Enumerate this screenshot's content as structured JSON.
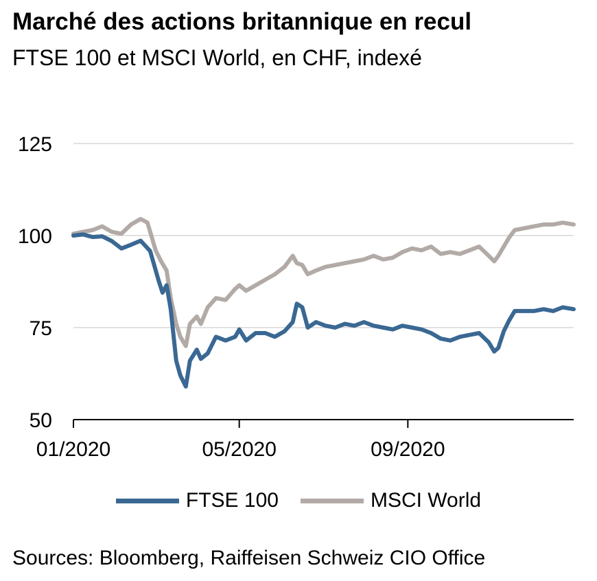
{
  "title": "Marché des actions britannique en recul",
  "subtitle": "FTSE 100 et MSCI World, en CHF, indexé",
  "source": "Sources: Bloomberg, Raiffeisen Schweiz CIO Office",
  "colors": {
    "ftse": "#3a6893",
    "msci": "#b2aaa6",
    "grid": "#cfcfcf",
    "axis": "#000000"
  },
  "chart_data": {
    "type": "line",
    "title": "Marché des actions britannique en recul",
    "subtitle": "FTSE 100 et MSCI World, en CHF, indexé",
    "xlabel": "",
    "ylabel": "",
    "x_range": [
      "2020-01-01",
      "2020-12-31"
    ],
    "ylim": [
      50,
      125
    ],
    "y_ticks": [
      50,
      75,
      100,
      125
    ],
    "y_tick_labels": [
      "50",
      "75",
      "100",
      "125"
    ],
    "x_ticks": [
      "2020-01-01",
      "2020-05-01",
      "2020-09-01"
    ],
    "x_tick_labels": [
      "01/2020",
      "05/2020",
      "09/2020"
    ],
    "grid": "horizontal",
    "legend_position": "bottom-center",
    "series": [
      {
        "name": "FTSE 100",
        "color": "#3a6893",
        "points": [
          [
            "2020-01-01",
            100
          ],
          [
            "2020-01-08",
            100.3
          ],
          [
            "2020-01-15",
            99.6
          ],
          [
            "2020-01-22",
            99.8
          ],
          [
            "2020-01-29",
            98.5
          ],
          [
            "2020-02-05",
            96.5
          ],
          [
            "2020-02-12",
            97.5
          ],
          [
            "2020-02-19",
            98.6
          ],
          [
            "2020-02-26",
            95.8
          ],
          [
            "2020-03-03",
            88
          ],
          [
            "2020-03-06",
            84.5
          ],
          [
            "2020-03-09",
            86.5
          ],
          [
            "2020-03-12",
            80
          ],
          [
            "2020-03-16",
            66
          ],
          [
            "2020-03-19",
            62
          ],
          [
            "2020-03-23",
            59
          ],
          [
            "2020-03-26",
            66
          ],
          [
            "2020-03-31",
            69
          ],
          [
            "2020-04-03",
            66.5
          ],
          [
            "2020-04-08",
            68
          ],
          [
            "2020-04-14",
            72.5
          ],
          [
            "2020-04-21",
            71.5
          ],
          [
            "2020-04-28",
            72.5
          ],
          [
            "2020-05-01",
            74.5
          ],
          [
            "2020-05-06",
            71.5
          ],
          [
            "2020-05-13",
            73.5
          ],
          [
            "2020-05-20",
            73.5
          ],
          [
            "2020-05-27",
            72.5
          ],
          [
            "2020-06-03",
            74
          ],
          [
            "2020-06-09",
            76.5
          ],
          [
            "2020-06-12",
            81.5
          ],
          [
            "2020-06-16",
            80.5
          ],
          [
            "2020-06-20",
            75
          ],
          [
            "2020-06-26",
            76.5
          ],
          [
            "2020-07-03",
            75.5
          ],
          [
            "2020-07-10",
            75
          ],
          [
            "2020-07-17",
            76
          ],
          [
            "2020-07-24",
            75.5
          ],
          [
            "2020-07-31",
            76.5
          ],
          [
            "2020-08-07",
            75.5
          ],
          [
            "2020-08-14",
            75
          ],
          [
            "2020-08-21",
            74.5
          ],
          [
            "2020-08-28",
            75.5
          ],
          [
            "2020-09-04",
            75
          ],
          [
            "2020-09-11",
            74.5
          ],
          [
            "2020-09-18",
            73.5
          ],
          [
            "2020-09-25",
            72
          ],
          [
            "2020-10-02",
            71.5
          ],
          [
            "2020-10-09",
            72.5
          ],
          [
            "2020-10-16",
            73
          ],
          [
            "2020-10-23",
            73.5
          ],
          [
            "2020-10-30",
            71
          ],
          [
            "2020-11-03",
            68.5
          ],
          [
            "2020-11-06",
            69.5
          ],
          [
            "2020-11-10",
            74
          ],
          [
            "2020-11-14",
            77
          ],
          [
            "2020-11-18",
            79.5
          ],
          [
            "2020-11-25",
            79.5
          ],
          [
            "2020-12-02",
            79.5
          ],
          [
            "2020-12-09",
            80
          ],
          [
            "2020-12-16",
            79.5
          ],
          [
            "2020-12-23",
            80.5
          ],
          [
            "2020-12-31",
            80
          ]
        ]
      },
      {
        "name": "MSCI World",
        "color": "#b2aaa6",
        "points": [
          [
            "2020-01-01",
            100.5
          ],
          [
            "2020-01-08",
            101
          ],
          [
            "2020-01-15",
            101.5
          ],
          [
            "2020-01-22",
            102.5
          ],
          [
            "2020-01-29",
            101
          ],
          [
            "2020-02-05",
            100.5
          ],
          [
            "2020-02-12",
            103
          ],
          [
            "2020-02-19",
            104.5
          ],
          [
            "2020-02-24",
            103.5
          ],
          [
            "2020-03-01",
            96
          ],
          [
            "2020-03-05",
            93
          ],
          [
            "2020-03-09",
            90.5
          ],
          [
            "2020-03-12",
            83
          ],
          [
            "2020-03-16",
            76
          ],
          [
            "2020-03-19",
            72.5
          ],
          [
            "2020-03-23",
            70
          ],
          [
            "2020-03-26",
            76
          ],
          [
            "2020-03-31",
            78
          ],
          [
            "2020-04-03",
            76
          ],
          [
            "2020-04-08",
            80.5
          ],
          [
            "2020-04-14",
            83
          ],
          [
            "2020-04-21",
            82.5
          ],
          [
            "2020-04-28",
            85.5
          ],
          [
            "2020-05-01",
            86.5
          ],
          [
            "2020-05-06",
            85
          ],
          [
            "2020-05-13",
            86.5
          ],
          [
            "2020-05-20",
            88
          ],
          [
            "2020-05-27",
            89.5
          ],
          [
            "2020-06-03",
            91.5
          ],
          [
            "2020-06-09",
            94.5
          ],
          [
            "2020-06-12",
            92.5
          ],
          [
            "2020-06-16",
            92
          ],
          [
            "2020-06-20",
            89.5
          ],
          [
            "2020-06-26",
            90.5
          ],
          [
            "2020-07-03",
            91.5
          ],
          [
            "2020-07-10",
            92
          ],
          [
            "2020-07-17",
            92.5
          ],
          [
            "2020-07-24",
            93
          ],
          [
            "2020-07-31",
            93.5
          ],
          [
            "2020-08-07",
            94.5
          ],
          [
            "2020-08-14",
            93.5
          ],
          [
            "2020-08-21",
            94
          ],
          [
            "2020-08-28",
            95.5
          ],
          [
            "2020-09-04",
            96.5
          ],
          [
            "2020-09-11",
            96
          ],
          [
            "2020-09-18",
            97
          ],
          [
            "2020-09-25",
            95
          ],
          [
            "2020-10-02",
            95.5
          ],
          [
            "2020-10-09",
            95
          ],
          [
            "2020-10-16",
            96
          ],
          [
            "2020-10-23",
            97
          ],
          [
            "2020-10-30",
            94.5
          ],
          [
            "2020-11-03",
            93
          ],
          [
            "2020-11-06",
            94.5
          ],
          [
            "2020-11-10",
            97
          ],
          [
            "2020-11-14",
            99.5
          ],
          [
            "2020-11-18",
            101.5
          ],
          [
            "2020-11-25",
            102
          ],
          [
            "2020-12-02",
            102.5
          ],
          [
            "2020-12-09",
            103
          ],
          [
            "2020-12-16",
            103
          ],
          [
            "2020-12-23",
            103.5
          ],
          [
            "2020-12-31",
            103
          ]
        ]
      }
    ]
  }
}
